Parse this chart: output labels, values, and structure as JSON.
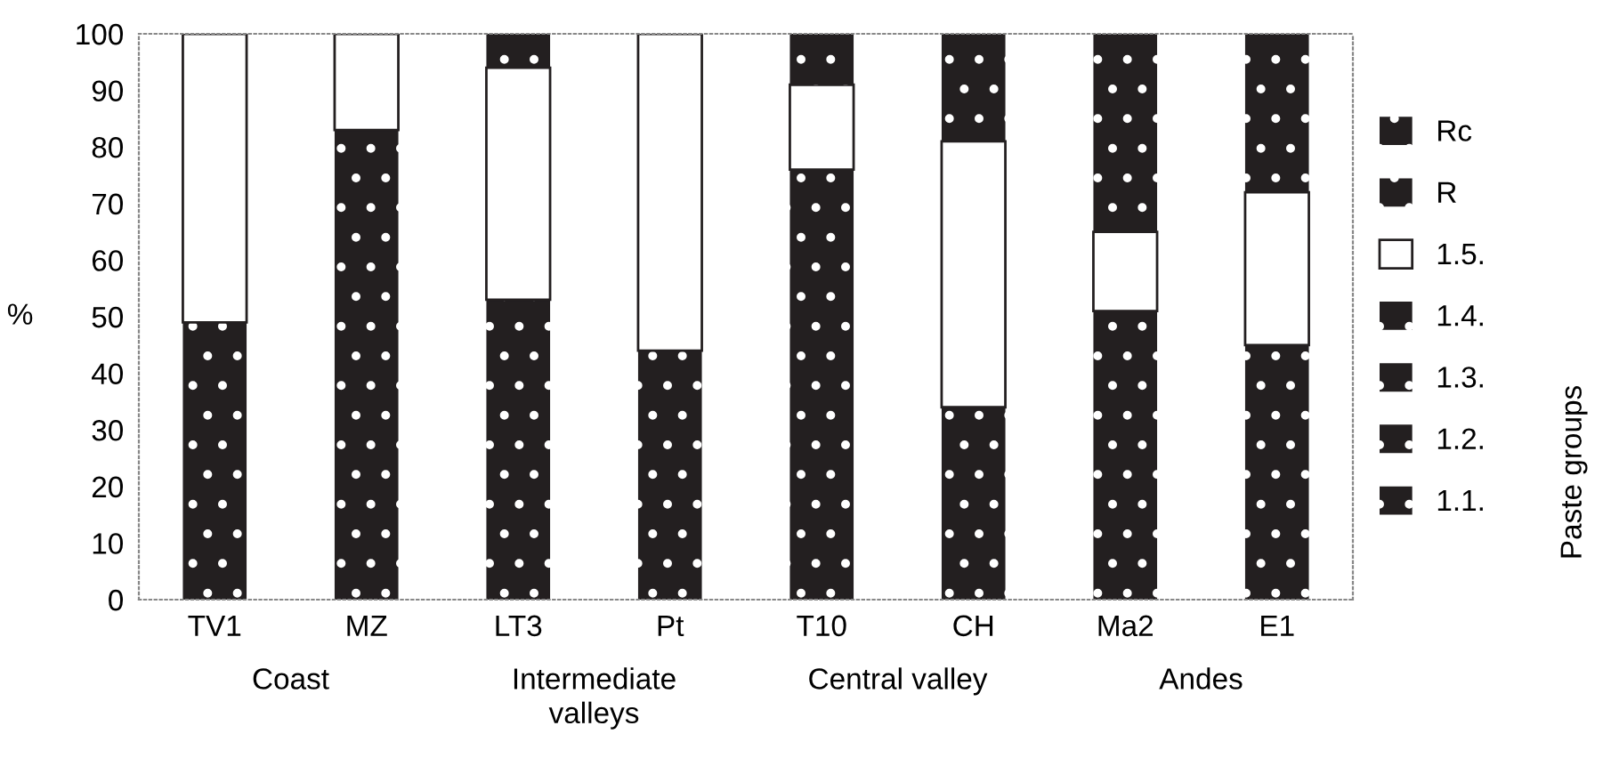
{
  "chart_data": {
    "type": "bar",
    "stacked": true,
    "ylabel": "%",
    "legend_title": "Paste groups",
    "legend": "right",
    "grid": false,
    "categories": [
      "TV1",
      "MZ",
      "LT3",
      "Pt",
      "T10",
      "CH",
      "Ma2",
      "E1"
    ],
    "ylim": [
      0,
      100
    ],
    "yticks": [
      0,
      10,
      20,
      30,
      40,
      50,
      60,
      70,
      80,
      90,
      100
    ],
    "series": [
      {
        "name": "1.1.",
        "color": "#231f20",
        "values": [
          49,
          83,
          53,
          44,
          76,
          34,
          51,
          45
        ]
      },
      {
        "name": "1.2.",
        "color": "#231f20",
        "values": [
          0,
          0,
          0,
          0,
          0,
          0,
          0,
          0
        ]
      },
      {
        "name": "1.3.",
        "color": "#231f20",
        "values": [
          0,
          0,
          0,
          0,
          0,
          0,
          0,
          0
        ]
      },
      {
        "name": "1.4.",
        "color": "#231f20",
        "values": [
          0,
          0,
          0,
          0,
          0,
          0,
          0,
          0
        ]
      },
      {
        "name": "1.5.",
        "color": "#ffffff",
        "values": [
          51,
          17,
          41,
          56,
          15,
          47,
          14,
          27
        ]
      },
      {
        "name": "R",
        "color": "#231f20",
        "values": [
          0,
          0,
          6,
          0,
          9,
          19,
          35,
          28
        ]
      },
      {
        "name": "Rc",
        "color": "#231f20",
        "values": [
          0,
          0,
          0,
          0,
          0,
          0,
          0,
          0
        ]
      }
    ],
    "annotations": [
      "Coast",
      "Intermediate\nvalleys",
      "Central valley",
      "Andes"
    ]
  }
}
